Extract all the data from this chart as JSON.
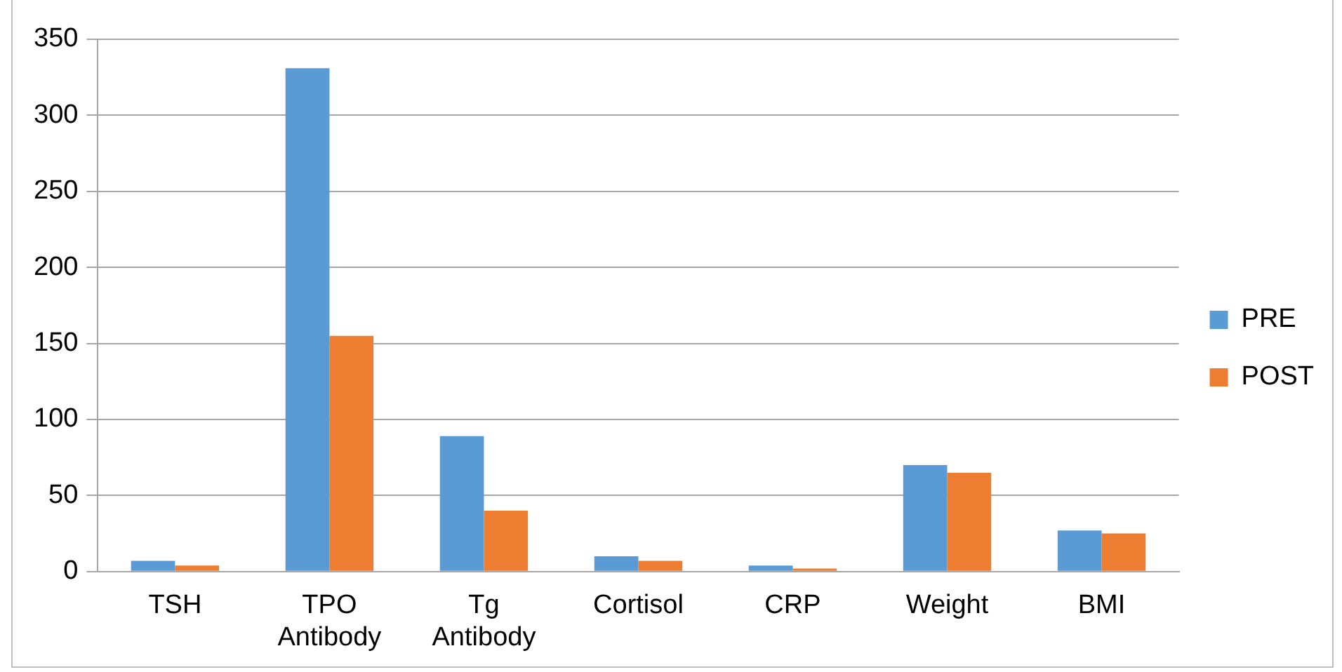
{
  "chart_data": {
    "type": "bar",
    "categories": [
      "TSH",
      "TPO Antibody",
      "Tg Antibody",
      "Cortisol",
      "CRP",
      "Weight",
      "BMI"
    ],
    "series": [
      {
        "name": "PRE",
        "color": "#5b9bd5",
        "values": [
          7,
          331,
          89,
          10,
          4,
          70,
          27
        ]
      },
      {
        "name": "POST",
        "color": "#ed7d31",
        "values": [
          4,
          155,
          40,
          7,
          2,
          65,
          25
        ]
      }
    ],
    "ylim": [
      0,
      350
    ],
    "yticks": [
      0,
      50,
      100,
      150,
      200,
      250,
      300,
      350
    ],
    "grid": "y",
    "legend": "right"
  }
}
